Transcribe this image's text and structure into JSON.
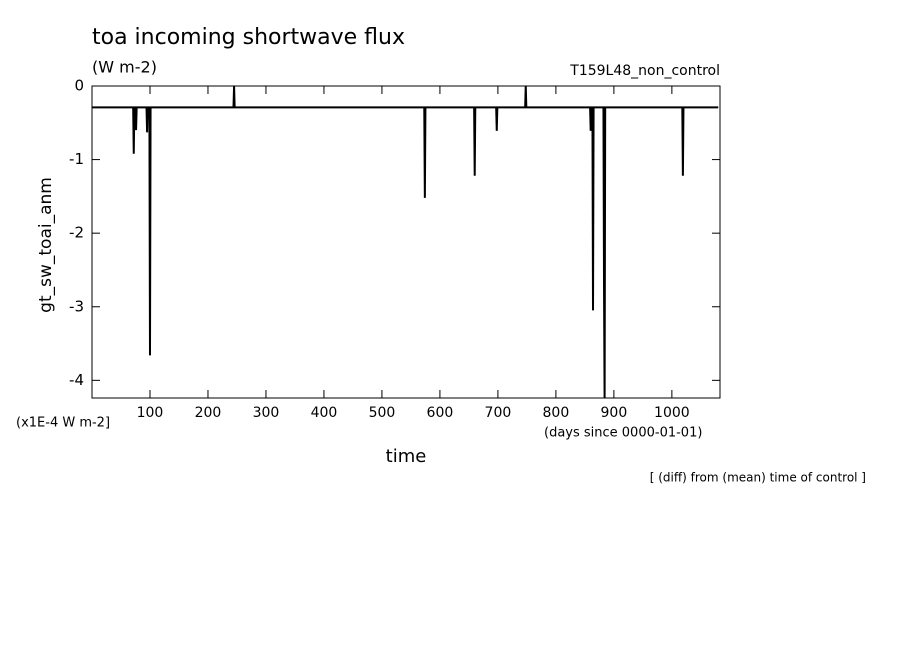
{
  "chart_data": {
    "type": "line",
    "title": "toa incoming shortwave flux",
    "subtitle": "(W m-2)",
    "run_label": "T159L48_non_control",
    "y_label": "gt_sw_toai_anm",
    "y_unit": "(x1E-4 W m-2]",
    "x_label": "time",
    "x_unit": "(days since 0000-01-01)",
    "note": "[ (diff) from (mean) time of control ]",
    "x": [
      0,
      71,
      72,
      73,
      75,
      76,
      77,
      94,
      95,
      96,
      99,
      100,
      101,
      244,
      245,
      246,
      573,
      574,
      575,
      659,
      660,
      661,
      697,
      698,
      699,
      747,
      748,
      749,
      859,
      860,
      861,
      863,
      864,
      865,
      882,
      883,
      884,
      885,
      1018,
      1019,
      1020,
      1080
    ],
    "series": [
      {
        "name": "gt_sw_toai_anm",
        "color": "#000000",
        "values": [
          -0.29,
          -0.29,
          -0.92,
          -0.29,
          -0.29,
          -0.6,
          -0.29,
          -0.29,
          -0.63,
          -0.29,
          -0.29,
          -3.66,
          -0.29,
          -0.29,
          0,
          -0.29,
          -0.29,
          -1.52,
          -0.29,
          -0.29,
          -1.22,
          -0.29,
          -0.29,
          -0.61,
          -0.29,
          -0.29,
          0,
          -0.29,
          -0.29,
          -0.61,
          -0.29,
          -0.29,
          -3.05,
          -0.29,
          -0.29,
          -2.75,
          -4.3,
          -0.29,
          -0.29,
          -1.22,
          -0.29,
          -0.29
        ]
      }
    ],
    "xlim": [
      0,
      1083
    ],
    "xticks": [
      100,
      200,
      300,
      400,
      500,
      600,
      700,
      800,
      900,
      1000
    ],
    "ylim": [
      -4.24,
      0
    ],
    "yticks": [
      0,
      -1,
      -2,
      -3,
      -4
    ],
    "grid": false
  }
}
